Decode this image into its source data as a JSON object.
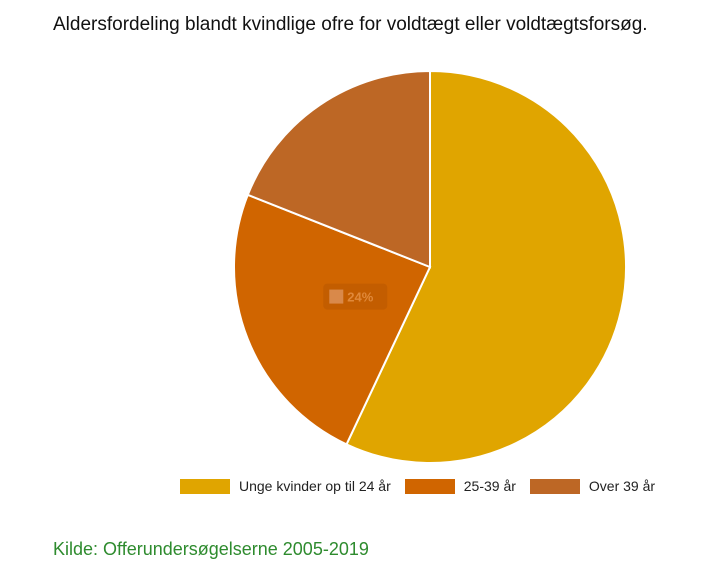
{
  "title": "Aldersfordeling blandt kvindlige ofre for voldtægt eller voldtægtsforsøg.",
  "source": "Kilde: Offerundersøgelserne 2005-2019",
  "chart_data": {
    "type": "pie",
    "title": "Aldersfordeling blandt kvindlige ofre for voldtægt eller voldtægtsforsøg.",
    "slices": [
      {
        "label": "Unge kvinder op til 24 år",
        "value": 57,
        "color": "#e0a500"
      },
      {
        "label": "25-39 år",
        "value": 24,
        "color": "#d06500"
      },
      {
        "label": "Over 39 år",
        "value": 19,
        "color": "#bd6725"
      }
    ],
    "data_labels": [
      {
        "series_index": 1,
        "text": "24%"
      }
    ],
    "legend_position": "bottom"
  }
}
